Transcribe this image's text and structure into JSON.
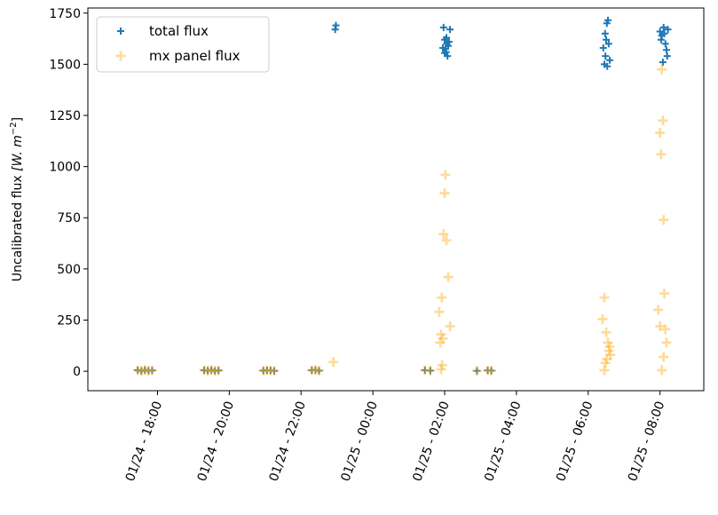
{
  "chart_data": {
    "type": "scatter",
    "title": "",
    "xlabel": "",
    "ylabel": "Uncalibrated flux",
    "ylabel_unit": "[W. m",
    "ylabel_unit_exp": "−2",
    "ylabel_unit_close": "]",
    "x_unit": "hours since 01/24 00:00",
    "xlim_hours": [
      16.06,
      33.22
    ],
    "ylim": [
      -95,
      1775
    ],
    "grid": false,
    "legend_position": "top-left",
    "x_ticks": [
      {
        "hour": 18,
        "label": "01/24 - 18:00"
      },
      {
        "hour": 20,
        "label": "01/24 - 20:00"
      },
      {
        "hour": 22,
        "label": "01/24 - 22:00"
      },
      {
        "hour": 24,
        "label": "01/25 - 00:00"
      },
      {
        "hour": 26,
        "label": "01/25 - 02:00"
      },
      {
        "hour": 28,
        "label": "01/25 - 04:00"
      },
      {
        "hour": 30,
        "label": "01/25 - 06:00"
      },
      {
        "hour": 32,
        "label": "01/25 - 08:00"
      }
    ],
    "y_ticks": [
      0,
      250,
      500,
      750,
      1000,
      1250,
      1500,
      1750
    ],
    "series": [
      {
        "name": "total flux",
        "color": "#1f77b4",
        "alpha": 1.0,
        "marker": "plus",
        "points": [
          [
            17.45,
            5
          ],
          [
            17.55,
            2
          ],
          [
            17.65,
            6
          ],
          [
            17.75,
            3
          ],
          [
            17.85,
            4
          ],
          [
            19.3,
            5
          ],
          [
            19.4,
            3
          ],
          [
            19.5,
            6
          ],
          [
            19.6,
            2
          ],
          [
            19.7,
            4
          ],
          [
            20.95,
            3
          ],
          [
            21.05,
            5
          ],
          [
            21.15,
            4
          ],
          [
            21.25,
            2
          ],
          [
            22.3,
            5
          ],
          [
            22.4,
            6
          ],
          [
            22.5,
            3
          ],
          [
            22.95,
            1670
          ],
          [
            22.97,
            1690
          ],
          [
            25.45,
            5
          ],
          [
            25.6,
            3
          ],
          [
            25.97,
            1680
          ],
          [
            26.0,
            1620
          ],
          [
            26.02,
            1575
          ],
          [
            26.04,
            1560
          ],
          [
            26.06,
            1600
          ],
          [
            26.08,
            1540
          ],
          [
            26.1,
            1590
          ],
          [
            26.12,
            1610
          ],
          [
            26.15,
            1670
          ],
          [
            25.95,
            1580
          ],
          [
            26.0,
            1555
          ],
          [
            26.05,
            1630
          ],
          [
            26.9,
            2
          ],
          [
            27.2,
            4
          ],
          [
            27.3,
            3
          ],
          [
            30.45,
            1500
          ],
          [
            30.48,
            1540
          ],
          [
            30.5,
            1620
          ],
          [
            30.52,
            1700
          ],
          [
            30.55,
            1715
          ],
          [
            30.57,
            1600
          ],
          [
            30.6,
            1520
          ],
          [
            30.42,
            1580
          ],
          [
            30.47,
            1650
          ],
          [
            30.53,
            1490
          ],
          [
            32.0,
            1660
          ],
          [
            32.05,
            1640
          ],
          [
            32.1,
            1680
          ],
          [
            32.15,
            1600
          ],
          [
            32.2,
            1540
          ],
          [
            32.12,
            1650
          ],
          [
            32.18,
            1570
          ],
          [
            32.08,
            1510
          ],
          [
            32.03,
            1620
          ],
          [
            32.22,
            1670
          ]
        ]
      },
      {
        "name": "mx panel flux",
        "color": "#ffa500",
        "alpha": 0.4,
        "marker": "plus",
        "points": [
          [
            17.45,
            5
          ],
          [
            17.55,
            2
          ],
          [
            17.65,
            6
          ],
          [
            17.75,
            3
          ],
          [
            17.85,
            4
          ],
          [
            19.3,
            5
          ],
          [
            19.4,
            3
          ],
          [
            19.5,
            6
          ],
          [
            19.6,
            2
          ],
          [
            19.7,
            4
          ],
          [
            20.95,
            3
          ],
          [
            21.05,
            5
          ],
          [
            21.15,
            4
          ],
          [
            21.25,
            2
          ],
          [
            22.3,
            5
          ],
          [
            22.4,
            6
          ],
          [
            22.5,
            3
          ],
          [
            22.9,
            45
          ],
          [
            25.45,
            5
          ],
          [
            25.6,
            3
          ],
          [
            25.85,
            290
          ],
          [
            25.9,
            180
          ],
          [
            25.92,
            360
          ],
          [
            25.95,
            160
          ],
          [
            25.97,
            670
          ],
          [
            26.0,
            870
          ],
          [
            26.02,
            960
          ],
          [
            26.05,
            640
          ],
          [
            26.1,
            460
          ],
          [
            26.15,
            220
          ],
          [
            25.93,
            30
          ],
          [
            25.9,
            10
          ],
          [
            25.88,
            140
          ],
          [
            26.9,
            2
          ],
          [
            27.2,
            4
          ],
          [
            27.3,
            3
          ],
          [
            30.4,
            255
          ],
          [
            30.45,
            360
          ],
          [
            30.5,
            190
          ],
          [
            30.55,
            140
          ],
          [
            30.58,
            100
          ],
          [
            30.6,
            120
          ],
          [
            30.62,
            80
          ],
          [
            30.48,
            40
          ],
          [
            30.45,
            5
          ],
          [
            30.52,
            60
          ],
          [
            31.95,
            300
          ],
          [
            32.0,
            1165
          ],
          [
            32.03,
            1060
          ],
          [
            32.05,
            1475
          ],
          [
            32.08,
            1225
          ],
          [
            32.1,
            740
          ],
          [
            32.12,
            380
          ],
          [
            32.15,
            205
          ],
          [
            32.18,
            140
          ],
          [
            32.1,
            70
          ],
          [
            32.05,
            5
          ],
          [
            32.0,
            220
          ]
        ]
      }
    ]
  }
}
